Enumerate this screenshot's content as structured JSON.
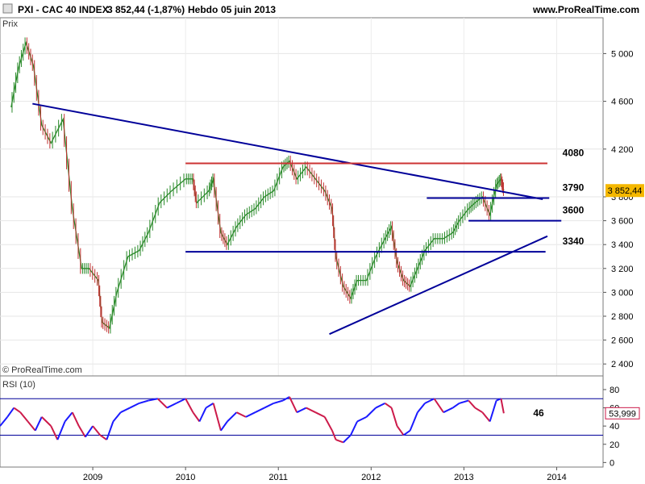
{
  "header": {
    "instrument": "PXI - CAC 40 INDEX",
    "quote": "3 852,44 (-1,87%)",
    "period": "Hebdo",
    "date": "05 juin 2013",
    "website": "www.ProRealTime.com"
  },
  "chart_data": [
    {
      "type": "candlestick",
      "panel_label": "Prix",
      "credit": "© ProRealTime.com",
      "ylim": [
        2300,
        5300
      ],
      "ytick_labels": [
        "5 000",
        "4 600",
        "4 200",
        "3 800",
        "3 600",
        "3 400",
        "3 200",
        "3 000",
        "2 800",
        "2 600",
        "2 400"
      ],
      "yticks": [
        5000,
        4600,
        4200,
        3800,
        3600,
        3400,
        3200,
        3000,
        2800,
        2600,
        2400
      ],
      "last_price": 3852.44,
      "last_price_label": "3 852,44",
      "series_close_points": [
        {
          "x": 2008.12,
          "y": 4550
        },
        {
          "x": 2008.2,
          "y": 4880
        },
        {
          "x": 2008.28,
          "y": 5090
        },
        {
          "x": 2008.36,
          "y": 4900
        },
        {
          "x": 2008.45,
          "y": 4400
        },
        {
          "x": 2008.55,
          "y": 4250
        },
        {
          "x": 2008.68,
          "y": 4450
        },
        {
          "x": 2008.78,
          "y": 3700
        },
        {
          "x": 2008.88,
          "y": 3200
        },
        {
          "x": 2008.96,
          "y": 3200
        },
        {
          "x": 2009.06,
          "y": 3100
        },
        {
          "x": 2009.1,
          "y": 2750
        },
        {
          "x": 2009.18,
          "y": 2700
        },
        {
          "x": 2009.26,
          "y": 3000
        },
        {
          "x": 2009.38,
          "y": 3300
        },
        {
          "x": 2009.5,
          "y": 3350
        },
        {
          "x": 2009.6,
          "y": 3500
        },
        {
          "x": 2009.72,
          "y": 3750
        },
        {
          "x": 2009.85,
          "y": 3850
        },
        {
          "x": 2010.0,
          "y": 3950
        },
        {
          "x": 2010.08,
          "y": 3950
        },
        {
          "x": 2010.12,
          "y": 3750
        },
        {
          "x": 2010.25,
          "y": 3850
        },
        {
          "x": 2010.3,
          "y": 3950
        },
        {
          "x": 2010.38,
          "y": 3500
        },
        {
          "x": 2010.45,
          "y": 3400
        },
        {
          "x": 2010.55,
          "y": 3550
        },
        {
          "x": 2010.65,
          "y": 3650
        },
        {
          "x": 2010.75,
          "y": 3700
        },
        {
          "x": 2010.85,
          "y": 3800
        },
        {
          "x": 2010.95,
          "y": 3850
        },
        {
          "x": 2011.05,
          "y": 4050
        },
        {
          "x": 2011.12,
          "y": 4100
        },
        {
          "x": 2011.2,
          "y": 3950
        },
        {
          "x": 2011.3,
          "y": 4050
        },
        {
          "x": 2011.4,
          "y": 3950
        },
        {
          "x": 2011.5,
          "y": 3850
        },
        {
          "x": 2011.58,
          "y": 3700
        },
        {
          "x": 2011.62,
          "y": 3300
        },
        {
          "x": 2011.7,
          "y": 3050
        },
        {
          "x": 2011.78,
          "y": 2950
        },
        {
          "x": 2011.85,
          "y": 3100
        },
        {
          "x": 2011.95,
          "y": 3100
        },
        {
          "x": 2012.05,
          "y": 3300
        },
        {
          "x": 2012.15,
          "y": 3450
        },
        {
          "x": 2012.22,
          "y": 3550
        },
        {
          "x": 2012.28,
          "y": 3250
        },
        {
          "x": 2012.35,
          "y": 3100
        },
        {
          "x": 2012.42,
          "y": 3050
        },
        {
          "x": 2012.5,
          "y": 3200
        },
        {
          "x": 2012.58,
          "y": 3350
        },
        {
          "x": 2012.68,
          "y": 3450
        },
        {
          "x": 2012.78,
          "y": 3450
        },
        {
          "x": 2012.88,
          "y": 3500
        },
        {
          "x": 2012.95,
          "y": 3600
        },
        {
          "x": 2013.05,
          "y": 3700
        },
        {
          "x": 2013.12,
          "y": 3750
        },
        {
          "x": 2013.2,
          "y": 3800
        },
        {
          "x": 2013.28,
          "y": 3650
        },
        {
          "x": 2013.35,
          "y": 3900
        },
        {
          "x": 2013.4,
          "y": 3950
        },
        {
          "x": 2013.43,
          "y": 3852
        }
      ],
      "trendlines": [
        {
          "from": {
            "x": 2008.35,
            "y": 4580
          },
          "to": {
            "x": 2013.85,
            "y": 3780
          }
        },
        {
          "from": {
            "x": 2011.55,
            "y": 2650
          },
          "to": {
            "x": 2013.9,
            "y": 3470
          }
        }
      ],
      "horizontal_levels": [
        {
          "label": "4080",
          "y": 4080,
          "from": 2010.0,
          "to": 2013.9,
          "color": "#cc3333"
        },
        {
          "label": "3790",
          "y": 3790,
          "from": 2012.6,
          "to": 2013.92,
          "color": "#000099"
        },
        {
          "label": "3600",
          "y": 3600,
          "from": 2013.05,
          "to": 2014.05,
          "color": "#000099"
        },
        {
          "label": "3340",
          "y": 3340,
          "from": 2010.0,
          "to": 2013.88,
          "color": "#000099"
        }
      ]
    },
    {
      "type": "line",
      "panel_label": "RSI (10)",
      "ylim": [
        -5,
        95
      ],
      "ytick_labels": [
        "80",
        "60",
        "40",
        "20",
        "0"
      ],
      "yticks": [
        80,
        60,
        40,
        20,
        0
      ],
      "overbought": 70,
      "oversold": 30,
      "value_label": "46",
      "last_value_label": "53,999",
      "series": [
        {
          "values": [
            {
              "x": 2008.0,
              "y": 40
            },
            {
              "x": 2008.08,
              "y": 50
            },
            {
              "x": 2008.15,
              "y": 60
            },
            {
              "x": 2008.22,
              "y": 55
            },
            {
              "x": 2008.3,
              "y": 45
            },
            {
              "x": 2008.38,
              "y": 35
            },
            {
              "x": 2008.45,
              "y": 50
            },
            {
              "x": 2008.55,
              "y": 40
            },
            {
              "x": 2008.62,
              "y": 25
            },
            {
              "x": 2008.7,
              "y": 45
            },
            {
              "x": 2008.78,
              "y": 55
            },
            {
              "x": 2008.85,
              "y": 40
            },
            {
              "x": 2008.92,
              "y": 28
            },
            {
              "x": 2009.0,
              "y": 40
            },
            {
              "x": 2009.08,
              "y": 30
            },
            {
              "x": 2009.15,
              "y": 25
            },
            {
              "x": 2009.22,
              "y": 45
            },
            {
              "x": 2009.3,
              "y": 55
            },
            {
              "x": 2009.4,
              "y": 60
            },
            {
              "x": 2009.5,
              "y": 65
            },
            {
              "x": 2009.6,
              "y": 68
            },
            {
              "x": 2009.7,
              "y": 70
            },
            {
              "x": 2009.8,
              "y": 60
            },
            {
              "x": 2009.9,
              "y": 65
            },
            {
              "x": 2010.0,
              "y": 70
            },
            {
              "x": 2010.08,
              "y": 55
            },
            {
              "x": 2010.15,
              "y": 45
            },
            {
              "x": 2010.22,
              "y": 60
            },
            {
              "x": 2010.3,
              "y": 65
            },
            {
              "x": 2010.38,
              "y": 35
            },
            {
              "x": 2010.45,
              "y": 45
            },
            {
              "x": 2010.55,
              "y": 55
            },
            {
              "x": 2010.65,
              "y": 50
            },
            {
              "x": 2010.75,
              "y": 55
            },
            {
              "x": 2010.85,
              "y": 60
            },
            {
              "x": 2010.95,
              "y": 65
            },
            {
              "x": 2011.05,
              "y": 68
            },
            {
              "x": 2011.12,
              "y": 72
            },
            {
              "x": 2011.2,
              "y": 55
            },
            {
              "x": 2011.3,
              "y": 60
            },
            {
              "x": 2011.4,
              "y": 55
            },
            {
              "x": 2011.5,
              "y": 50
            },
            {
              "x": 2011.58,
              "y": 35
            },
            {
              "x": 2011.62,
              "y": 25
            },
            {
              "x": 2011.7,
              "y": 22
            },
            {
              "x": 2011.78,
              "y": 30
            },
            {
              "x": 2011.85,
              "y": 45
            },
            {
              "x": 2011.95,
              "y": 50
            },
            {
              "x": 2012.05,
              "y": 60
            },
            {
              "x": 2012.15,
              "y": 65
            },
            {
              "x": 2012.22,
              "y": 60
            },
            {
              "x": 2012.28,
              "y": 40
            },
            {
              "x": 2012.35,
              "y": 30
            },
            {
              "x": 2012.42,
              "y": 35
            },
            {
              "x": 2012.5,
              "y": 55
            },
            {
              "x": 2012.58,
              "y": 65
            },
            {
              "x": 2012.68,
              "y": 70
            },
            {
              "x": 2012.78,
              "y": 55
            },
            {
              "x": 2012.88,
              "y": 60
            },
            {
              "x": 2012.95,
              "y": 65
            },
            {
              "x": 2013.05,
              "y": 68
            },
            {
              "x": 2013.12,
              "y": 60
            },
            {
              "x": 2013.2,
              "y": 55
            },
            {
              "x": 2013.28,
              "y": 45
            },
            {
              "x": 2013.35,
              "y": 68
            },
            {
              "x": 2013.4,
              "y": 70
            },
            {
              "x": 2013.43,
              "y": 54
            }
          ]
        }
      ]
    }
  ],
  "x_axis": {
    "xlim": [
      2008.0,
      2014.5
    ],
    "tick_labels": [
      "2009",
      "2010",
      "2011",
      "2012",
      "2013",
      "2014"
    ],
    "ticks": [
      2009.0,
      2010.0,
      2011.0,
      2012.0,
      2013.0,
      2014.0
    ]
  },
  "colors": {
    "up": "#2a8a2a",
    "down": "#c03030",
    "trend": "#000099",
    "resistance": "#cc3333",
    "rsi_up": "#1a1aff",
    "rsi_down": "#cc1a4a",
    "price_tag": "#f5b800"
  }
}
